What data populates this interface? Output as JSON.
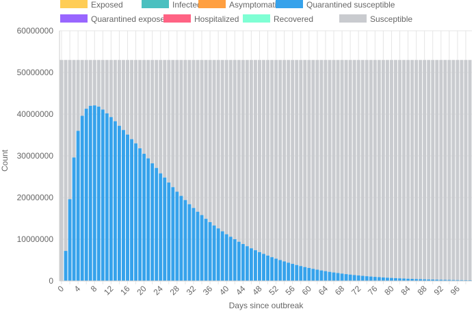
{
  "chart_data": {
    "type": "bar",
    "stacked": true,
    "xlabel": "Days since outbreak",
    "ylabel": "Count",
    "ylim": [
      0,
      60000000
    ],
    "y_ticks": [
      0,
      10000000,
      20000000,
      30000000,
      40000000,
      50000000,
      60000000
    ],
    "x_range": [
      0,
      99
    ],
    "x_tick_step": 2,
    "legend_position": "top",
    "grid": true,
    "total_population": 53000000,
    "series": [
      {
        "name": "Exposed",
        "color": "#ffcd56"
      },
      {
        "name": "Infected",
        "color": "#4bc0c0"
      },
      {
        "name": "Asymptomatic",
        "color": "#ff9f40"
      },
      {
        "name": "Quarantined susceptible",
        "color": "#36a2eb",
        "values": [
          0,
          7200000,
          19600000,
          29600000,
          36000000,
          39600000,
          41300000,
          42000000,
          42100000,
          41800000,
          41100000,
          40200000,
          39300000,
          38300000,
          37200000,
          36200000,
          35100000,
          34000000,
          33000000,
          31800000,
          30500000,
          29400000,
          28200000,
          27100000,
          25800000,
          24800000,
          23600000,
          22500000,
          21400000,
          20400000,
          19400000,
          18400000,
          17500000,
          16600000,
          15800000,
          14900000,
          14100000,
          13300000,
          12600000,
          11900000,
          11200000,
          10600000,
          10000000,
          9400000,
          8850000,
          8330000,
          7830000,
          7360000,
          6910000,
          6480000,
          6080000,
          5700000,
          5340000,
          5000000,
          4680000,
          4380000,
          4090000,
          3820000,
          3570000,
          3330000,
          3110000,
          2900000,
          2700000,
          2520000,
          2350000,
          2180000,
          2030000,
          1890000,
          1760000,
          1630000,
          1520000,
          1410000,
          1310000,
          1220000,
          1130000,
          1050000,
          970000,
          900000,
          835000,
          775000,
          718000,
          665000,
          616000,
          571000,
          529000,
          490000,
          453000,
          420000,
          388000,
          359000,
          332000,
          307000,
          284000,
          263000,
          243000,
          224000,
          207000,
          191000,
          177000,
          163000
        ]
      },
      {
        "name": "Quarantined exposed",
        "color": "#9966ff"
      },
      {
        "name": "Hospitalized",
        "color": "#ff6384"
      },
      {
        "name": "Recovered",
        "color": "#7fffd4"
      },
      {
        "name": "Susceptible",
        "color": "#c9cbcf"
      }
    ]
  }
}
